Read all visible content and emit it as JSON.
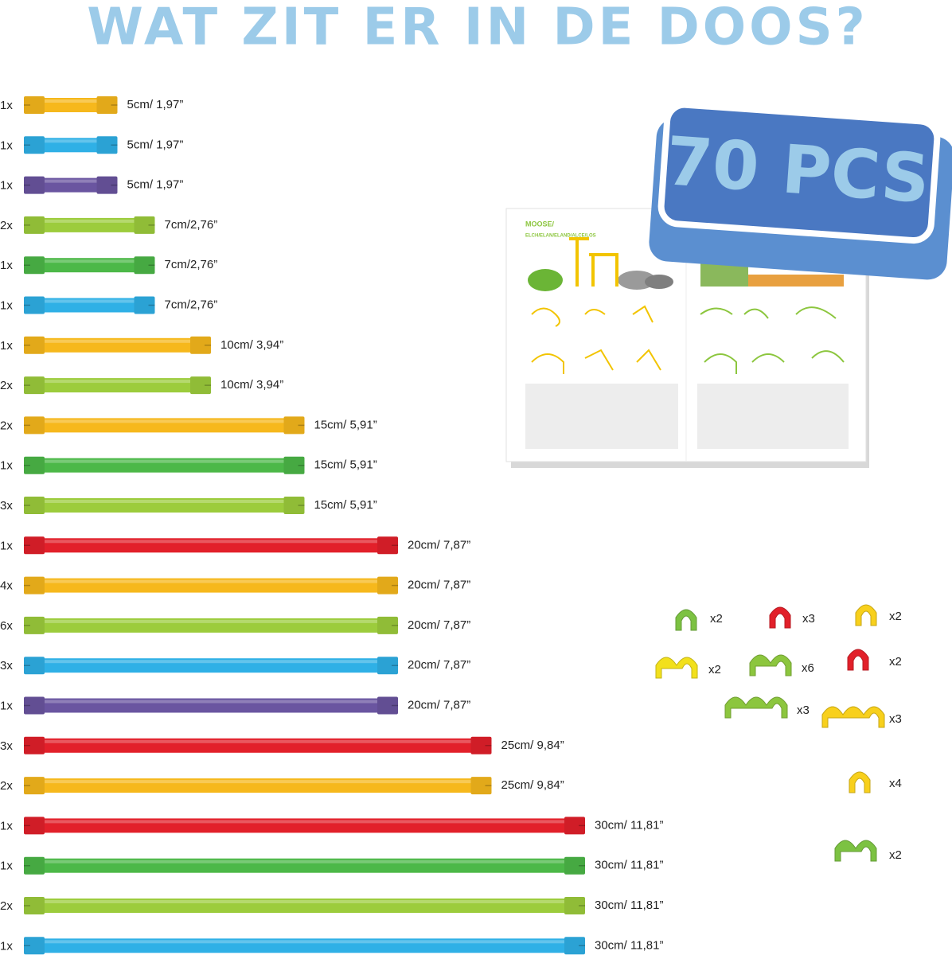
{
  "header": {
    "title": "WAT ZIT ER IN DE DOOS?"
  },
  "badge": {
    "text": "70 PCS"
  },
  "booklet": {
    "title": "MOOSE/",
    "subtitle": "ELCH/ELAN/ELAND/ALCE/LOS"
  },
  "rods": [
    {
      "qty": "1x",
      "label": "5cm/ 1,97”",
      "color": "#f6b81c"
    },
    {
      "qty": "1x",
      "label": "5cm/ 1,97”",
      "color": "#2fb0e6"
    },
    {
      "qty": "1x",
      "label": "5cm/ 1,97”",
      "color": "#6a55a0"
    },
    {
      "qty": "2x",
      "label": "7cm/2,76”",
      "color": "#9ccc3c"
    },
    {
      "qty": "1x",
      "label": "7cm/2,76”",
      "color": "#4cb848"
    },
    {
      "qty": "1x",
      "label": "7cm/2,76”",
      "color": "#2fb0e6"
    },
    {
      "qty": "1x",
      "label": "10cm/ 3,94”",
      "color": "#f6b81c"
    },
    {
      "qty": "2x",
      "label": "10cm/ 3,94”",
      "color": "#9ccc3c"
    },
    {
      "qty": "2x",
      "label": "15cm/ 5,91”",
      "color": "#f6b81c"
    },
    {
      "qty": "1x",
      "label": "15cm/ 5,91”",
      "color": "#4cb848"
    },
    {
      "qty": "3x",
      "label": "15cm/ 5,91”",
      "color": "#9ccc3c"
    },
    {
      "qty": "1x",
      "label": "20cm/ 7,87”",
      "color": "#e2202a"
    },
    {
      "qty": "4x",
      "label": "20cm/ 7,87”",
      "color": "#f6b81c"
    },
    {
      "qty": "6x",
      "label": "20cm/ 7,87”",
      "color": "#9ccc3c"
    },
    {
      "qty": "3x",
      "label": "20cm/ 7,87”",
      "color": "#2fb0e6"
    },
    {
      "qty": "1x",
      "label": "20cm/ 7,87”",
      "color": "#6a55a0"
    },
    {
      "qty": "3x",
      "label": "25cm/ 9,84”",
      "color": "#e2202a"
    },
    {
      "qty": "2x",
      "label": "25cm/ 9,84”",
      "color": "#f6b81c"
    },
    {
      "qty": "1x",
      "label": "30cm/ 11,81”",
      "color": "#e2202a"
    },
    {
      "qty": "1x",
      "label": "30cm/ 11,81”",
      "color": "#4cb848"
    },
    {
      "qty": "2x",
      "label": "30cm/ 11,81”",
      "color": "#9ccc3c"
    },
    {
      "qty": "1x",
      "label": "30cm/ 11,81”",
      "color": "#2fb0e6"
    }
  ],
  "connectors": [
    {
      "count": "x2",
      "color": "#7cc242"
    },
    {
      "count": "x3",
      "color": "#e2202a"
    },
    {
      "count": "x2",
      "color": "#f8d01c"
    },
    {
      "count": "x2",
      "color": "#f2e01c"
    },
    {
      "count": "x6",
      "color": "#8cc63e"
    },
    {
      "count": "x2",
      "color": "#e2202a"
    },
    {
      "count": "x3",
      "color": "#8cc63e"
    },
    {
      "count": "x3",
      "color": "#f8d01c"
    },
    {
      "count": "x4",
      "color": "#f8d01c"
    },
    {
      "count": "x2",
      "color": "#7cc242"
    }
  ]
}
